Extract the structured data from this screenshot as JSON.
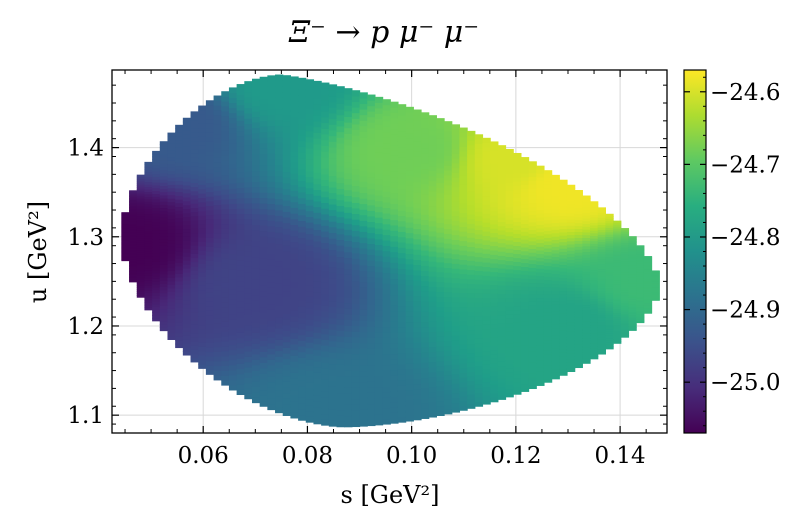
{
  "chart_data": {
    "type": "heatmap",
    "title": "Ξ⁻ → p μ⁻ μ⁻",
    "xlabel": "s [GeV²]",
    "ylabel": "u [GeV²]",
    "xlim": [
      0.0425,
      0.149
    ],
    "ylim": [
      1.08,
      1.487
    ],
    "xticks": [
      0.06,
      0.08,
      0.1,
      0.12,
      0.14
    ],
    "xtick_labels": [
      "0.06",
      "0.08",
      "0.10",
      "0.12",
      "0.14"
    ],
    "yticks": [
      1.1,
      1.2,
      1.3,
      1.4
    ],
    "ytick_labels": [
      "1.1",
      "1.2",
      "1.3",
      "1.4"
    ],
    "grid": true,
    "colormap": "viridis",
    "colorbar": {
      "range": [
        -25.07,
        -24.57
      ],
      "ticks": [
        -25.0,
        -24.9,
        -24.8,
        -24.7,
        -24.6
      ],
      "tick_labels": [
        "−25.0",
        "−24.9",
        "−24.8",
        "−24.7",
        "−24.6"
      ]
    },
    "region": {
      "s_min": 0.0443,
      "s_max": 0.1475,
      "u_min": 1.087,
      "u_max": 1.482,
      "u_top_at_s": 0.075,
      "u_bottom_at_s": 0.087,
      "u_left_center": 1.3,
      "u_right_center": 1.245
    },
    "values": [
      {
        "s": 0.045,
        "u": 1.29,
        "z": -25.07
      },
      {
        "s": 0.055,
        "u": 1.43,
        "z": -24.93
      },
      {
        "s": 0.075,
        "u": 1.47,
        "z": -24.8
      },
      {
        "s": 0.07,
        "u": 1.25,
        "z": -24.97
      },
      {
        "s": 0.085,
        "u": 1.1,
        "z": -24.88
      },
      {
        "s": 0.1,
        "u": 1.4,
        "z": -24.68
      },
      {
        "s": 0.12,
        "u": 1.39,
        "z": -24.6
      },
      {
        "s": 0.13,
        "u": 1.36,
        "z": -24.58
      },
      {
        "s": 0.13,
        "u": 1.2,
        "z": -24.78
      },
      {
        "s": 0.145,
        "u": 1.25,
        "z": -24.73
      }
    ]
  }
}
